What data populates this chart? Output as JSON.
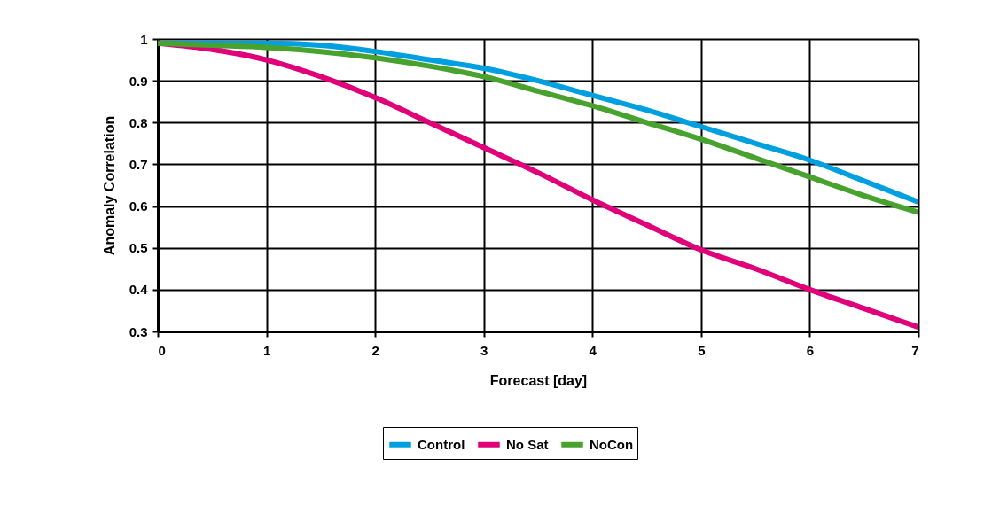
{
  "chart_data": {
    "type": "line",
    "xlabel": "Forecast [day]",
    "ylabel": "Anomaly Correlation",
    "x": [
      0,
      0.5,
      1,
      1.5,
      2,
      2.5,
      3,
      3.5,
      4,
      4.5,
      5,
      5.5,
      6,
      6.5,
      7
    ],
    "series": [
      {
        "name": "Control",
        "color": "#00a0e0",
        "values": [
          0.99,
          0.99,
          0.99,
          0.985,
          0.97,
          0.95,
          0.93,
          0.9,
          0.865,
          0.83,
          0.79,
          0.75,
          0.71,
          0.66,
          0.61
        ]
      },
      {
        "name": "No Sat",
        "color": "#e0007a",
        "values": [
          0.99,
          0.975,
          0.95,
          0.91,
          0.86,
          0.8,
          0.74,
          0.68,
          0.615,
          0.555,
          0.495,
          0.45,
          0.4,
          0.355,
          0.31
        ]
      },
      {
        "name": "NoCon",
        "color": "#48a22e",
        "values": [
          0.99,
          0.985,
          0.98,
          0.97,
          0.955,
          0.935,
          0.91,
          0.875,
          0.84,
          0.8,
          0.76,
          0.715,
          0.67,
          0.625,
          0.585
        ]
      }
    ],
    "xlim": [
      0,
      7
    ],
    "xticks": [
      0,
      1,
      2,
      3,
      4,
      5,
      6,
      7
    ],
    "ylim": [
      0.3,
      1
    ],
    "yticks": [
      0.3,
      0.4,
      0.5,
      0.6,
      0.7,
      0.8,
      0.9,
      1
    ],
    "grid": true,
    "legend": "bottom",
    "marker": "none",
    "line_style": "solid"
  }
}
